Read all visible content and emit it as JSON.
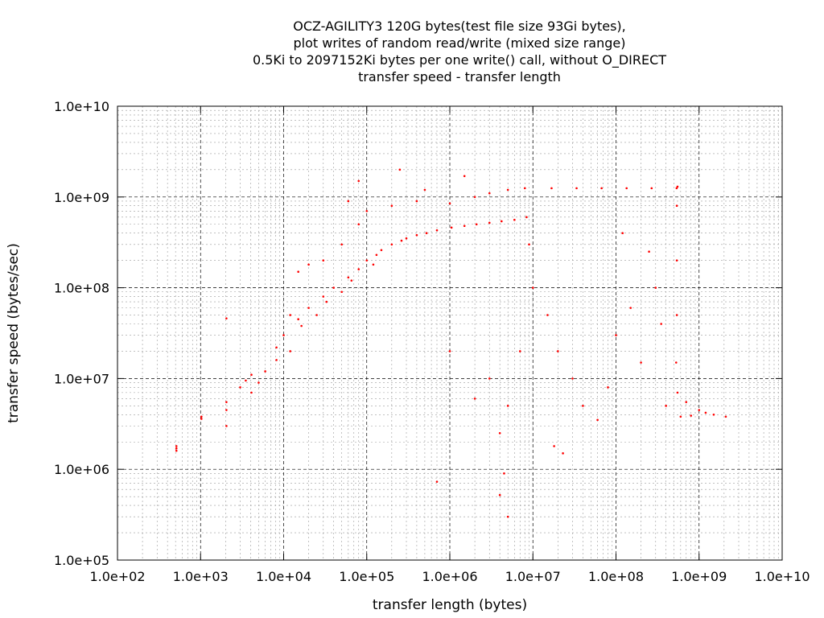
{
  "chart_data": {
    "type": "scatter",
    "title_lines": [
      "OCZ-AGILITY3 120G bytes(test file size 93Gi bytes),",
      "plot writes of random read/write (mixed size range)",
      "0.5Ki to 2097152Ki bytes per one write() call, without O_DIRECT",
      "transfer speed - transfer length"
    ],
    "xlabel": "transfer length (bytes)",
    "ylabel": "transfer speed (bytes/sec)",
    "x_scale": "log",
    "y_scale": "log",
    "xlim": [
      100,
      10000000000
    ],
    "ylim": [
      100000,
      10000000000
    ],
    "x_ticks": [
      "1.0e+02",
      "1.0e+03",
      "1.0e+04",
      "1.0e+05",
      "1.0e+06",
      "1.0e+07",
      "1.0e+08",
      "1.0e+09",
      "1.0e+10"
    ],
    "y_ticks": [
      "1.0e+05",
      "1.0e+06",
      "1.0e+07",
      "1.0e+08",
      "1.0e+09",
      "1.0e+10"
    ],
    "grid": true,
    "marker_color": "#ff0000",
    "series": [
      {
        "points": [
          [
            512,
            1800000
          ],
          [
            512,
            1600000
          ],
          [
            512,
            1700000
          ],
          [
            1024,
            3800000
          ],
          [
            1024,
            3600000
          ],
          [
            2048,
            5500000
          ],
          [
            2048,
            4500000
          ],
          [
            2048,
            3000000
          ],
          [
            2048,
            46000000
          ],
          [
            3000,
            8000000
          ],
          [
            3500,
            9500000
          ],
          [
            4096,
            7000000
          ],
          [
            4096,
            11000000
          ],
          [
            5000,
            9000000
          ],
          [
            6000,
            12000000
          ],
          [
            8192,
            16000000
          ],
          [
            8192,
            22000000
          ],
          [
            10000,
            30000000
          ],
          [
            12000,
            20000000
          ],
          [
            15000,
            45000000
          ],
          [
            16384,
            38000000
          ],
          [
            20000,
            60000000
          ],
          [
            25000,
            50000000
          ],
          [
            30000,
            80000000
          ],
          [
            32768,
            70000000
          ],
          [
            40000,
            100000000
          ],
          [
            50000,
            90000000
          ],
          [
            60000,
            130000000
          ],
          [
            65536,
            120000000
          ],
          [
            80000,
            160000000
          ],
          [
            100000,
            200000000
          ],
          [
            120000,
            180000000
          ],
          [
            131072,
            230000000
          ],
          [
            150000,
            260000000
          ],
          [
            200000,
            300000000
          ],
          [
            262144,
            330000000
          ],
          [
            300000,
            350000000
          ],
          [
            400000,
            380000000
          ],
          [
            524288,
            400000000
          ],
          [
            700000,
            430000000
          ],
          [
            1048576,
            460000000
          ],
          [
            1500000,
            480000000
          ],
          [
            2097152,
            500000000
          ],
          [
            3000000,
            520000000
          ],
          [
            4194304,
            540000000
          ],
          [
            6000000,
            560000000
          ],
          [
            8388608,
            600000000
          ],
          [
            30000,
            200000000
          ],
          [
            50000,
            300000000
          ],
          [
            80000,
            500000000
          ],
          [
            100000,
            700000000
          ],
          [
            200000,
            800000000
          ],
          [
            400000,
            900000000
          ],
          [
            1000000,
            850000000
          ],
          [
            2000000,
            1000000000
          ],
          [
            3000000,
            1100000000
          ],
          [
            5000000,
            1200000000
          ],
          [
            8000000,
            1250000000
          ],
          [
            16777216,
            1250000000
          ],
          [
            33554432,
            1250000000
          ],
          [
            67108864,
            1250000000
          ],
          [
            134217728,
            1250000000
          ],
          [
            268435456,
            1250000000
          ],
          [
            536870912,
            1250000000
          ],
          [
            550000000,
            1300000000
          ],
          [
            540000000,
            800000000
          ],
          [
            540000000,
            200000000
          ],
          [
            540000000,
            50000000
          ],
          [
            530000000,
            15000000
          ],
          [
            550000000,
            7000000
          ],
          [
            700000000,
            5500000
          ],
          [
            1000000000,
            4500000
          ],
          [
            1500000000,
            4000000
          ],
          [
            2097152000,
            3800000
          ],
          [
            600000000,
            3800000
          ],
          [
            800000000,
            3900000
          ],
          [
            1200000000,
            4200000
          ],
          [
            9000000,
            300000000
          ],
          [
            10000000,
            100000000
          ],
          [
            15000000,
            50000000
          ],
          [
            20000000,
            20000000
          ],
          [
            30000000,
            10000000
          ],
          [
            40000000,
            5000000
          ],
          [
            60000000,
            3500000
          ],
          [
            80000000,
            8000000
          ],
          [
            100000000,
            30000000
          ],
          [
            150000000,
            60000000
          ],
          [
            200000000,
            15000000
          ],
          [
            300000000,
            100000000
          ],
          [
            400000000,
            5000000
          ],
          [
            120000000,
            400000000
          ],
          [
            250000000,
            250000000
          ],
          [
            350000000,
            40000000
          ],
          [
            3000000,
            10000000
          ],
          [
            5000000,
            5000000
          ],
          [
            7000000,
            20000000
          ],
          [
            1000000,
            20000000
          ],
          [
            2000000,
            6000000
          ],
          [
            4000000,
            2500000
          ],
          [
            700000,
            730000
          ],
          [
            5000000,
            300000
          ],
          [
            4000000,
            520000
          ],
          [
            4500000,
            900000
          ],
          [
            18000000,
            1800000
          ],
          [
            23000000,
            1500000
          ],
          [
            20000,
            180000000
          ],
          [
            15000,
            150000000
          ],
          [
            60000,
            900000000
          ],
          [
            80000,
            1500000000
          ],
          [
            250000,
            2000000000
          ],
          [
            500000,
            1200000000
          ],
          [
            1500000,
            1700000000
          ],
          [
            12000,
            50000000
          ]
        ]
      }
    ]
  }
}
